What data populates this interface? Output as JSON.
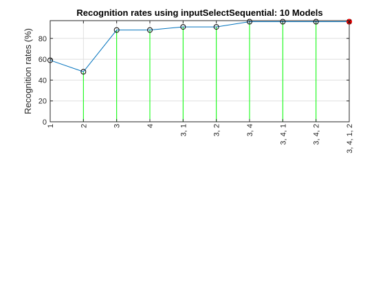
{
  "chart_data": {
    "type": "line",
    "title": "Recognition rates using inputSelectSequential: 10 Models",
    "xlabel": "",
    "ylabel": "Recognition rates (%)",
    "categories": [
      "1",
      "2",
      "3",
      "4",
      "3, 1",
      "3, 2",
      "3, 4",
      "3, 4, 1",
      "3, 4, 2",
      "3, 4, 1, 2"
    ],
    "series": [
      {
        "values": [
          59,
          48,
          88,
          88,
          91,
          91,
          96,
          96,
          96,
          96
        ]
      }
    ],
    "highlight_index": 9,
    "ylim": [
      0,
      97
    ],
    "yticks": [
      0,
      20,
      40,
      60,
      80
    ],
    "grid": true,
    "colors": {
      "line": "#0072BD",
      "stem": "#00FF00",
      "marker_edge": "#000000",
      "highlight": "#FF0000",
      "axis": "#262626",
      "grid": "#DFDFDF"
    }
  }
}
